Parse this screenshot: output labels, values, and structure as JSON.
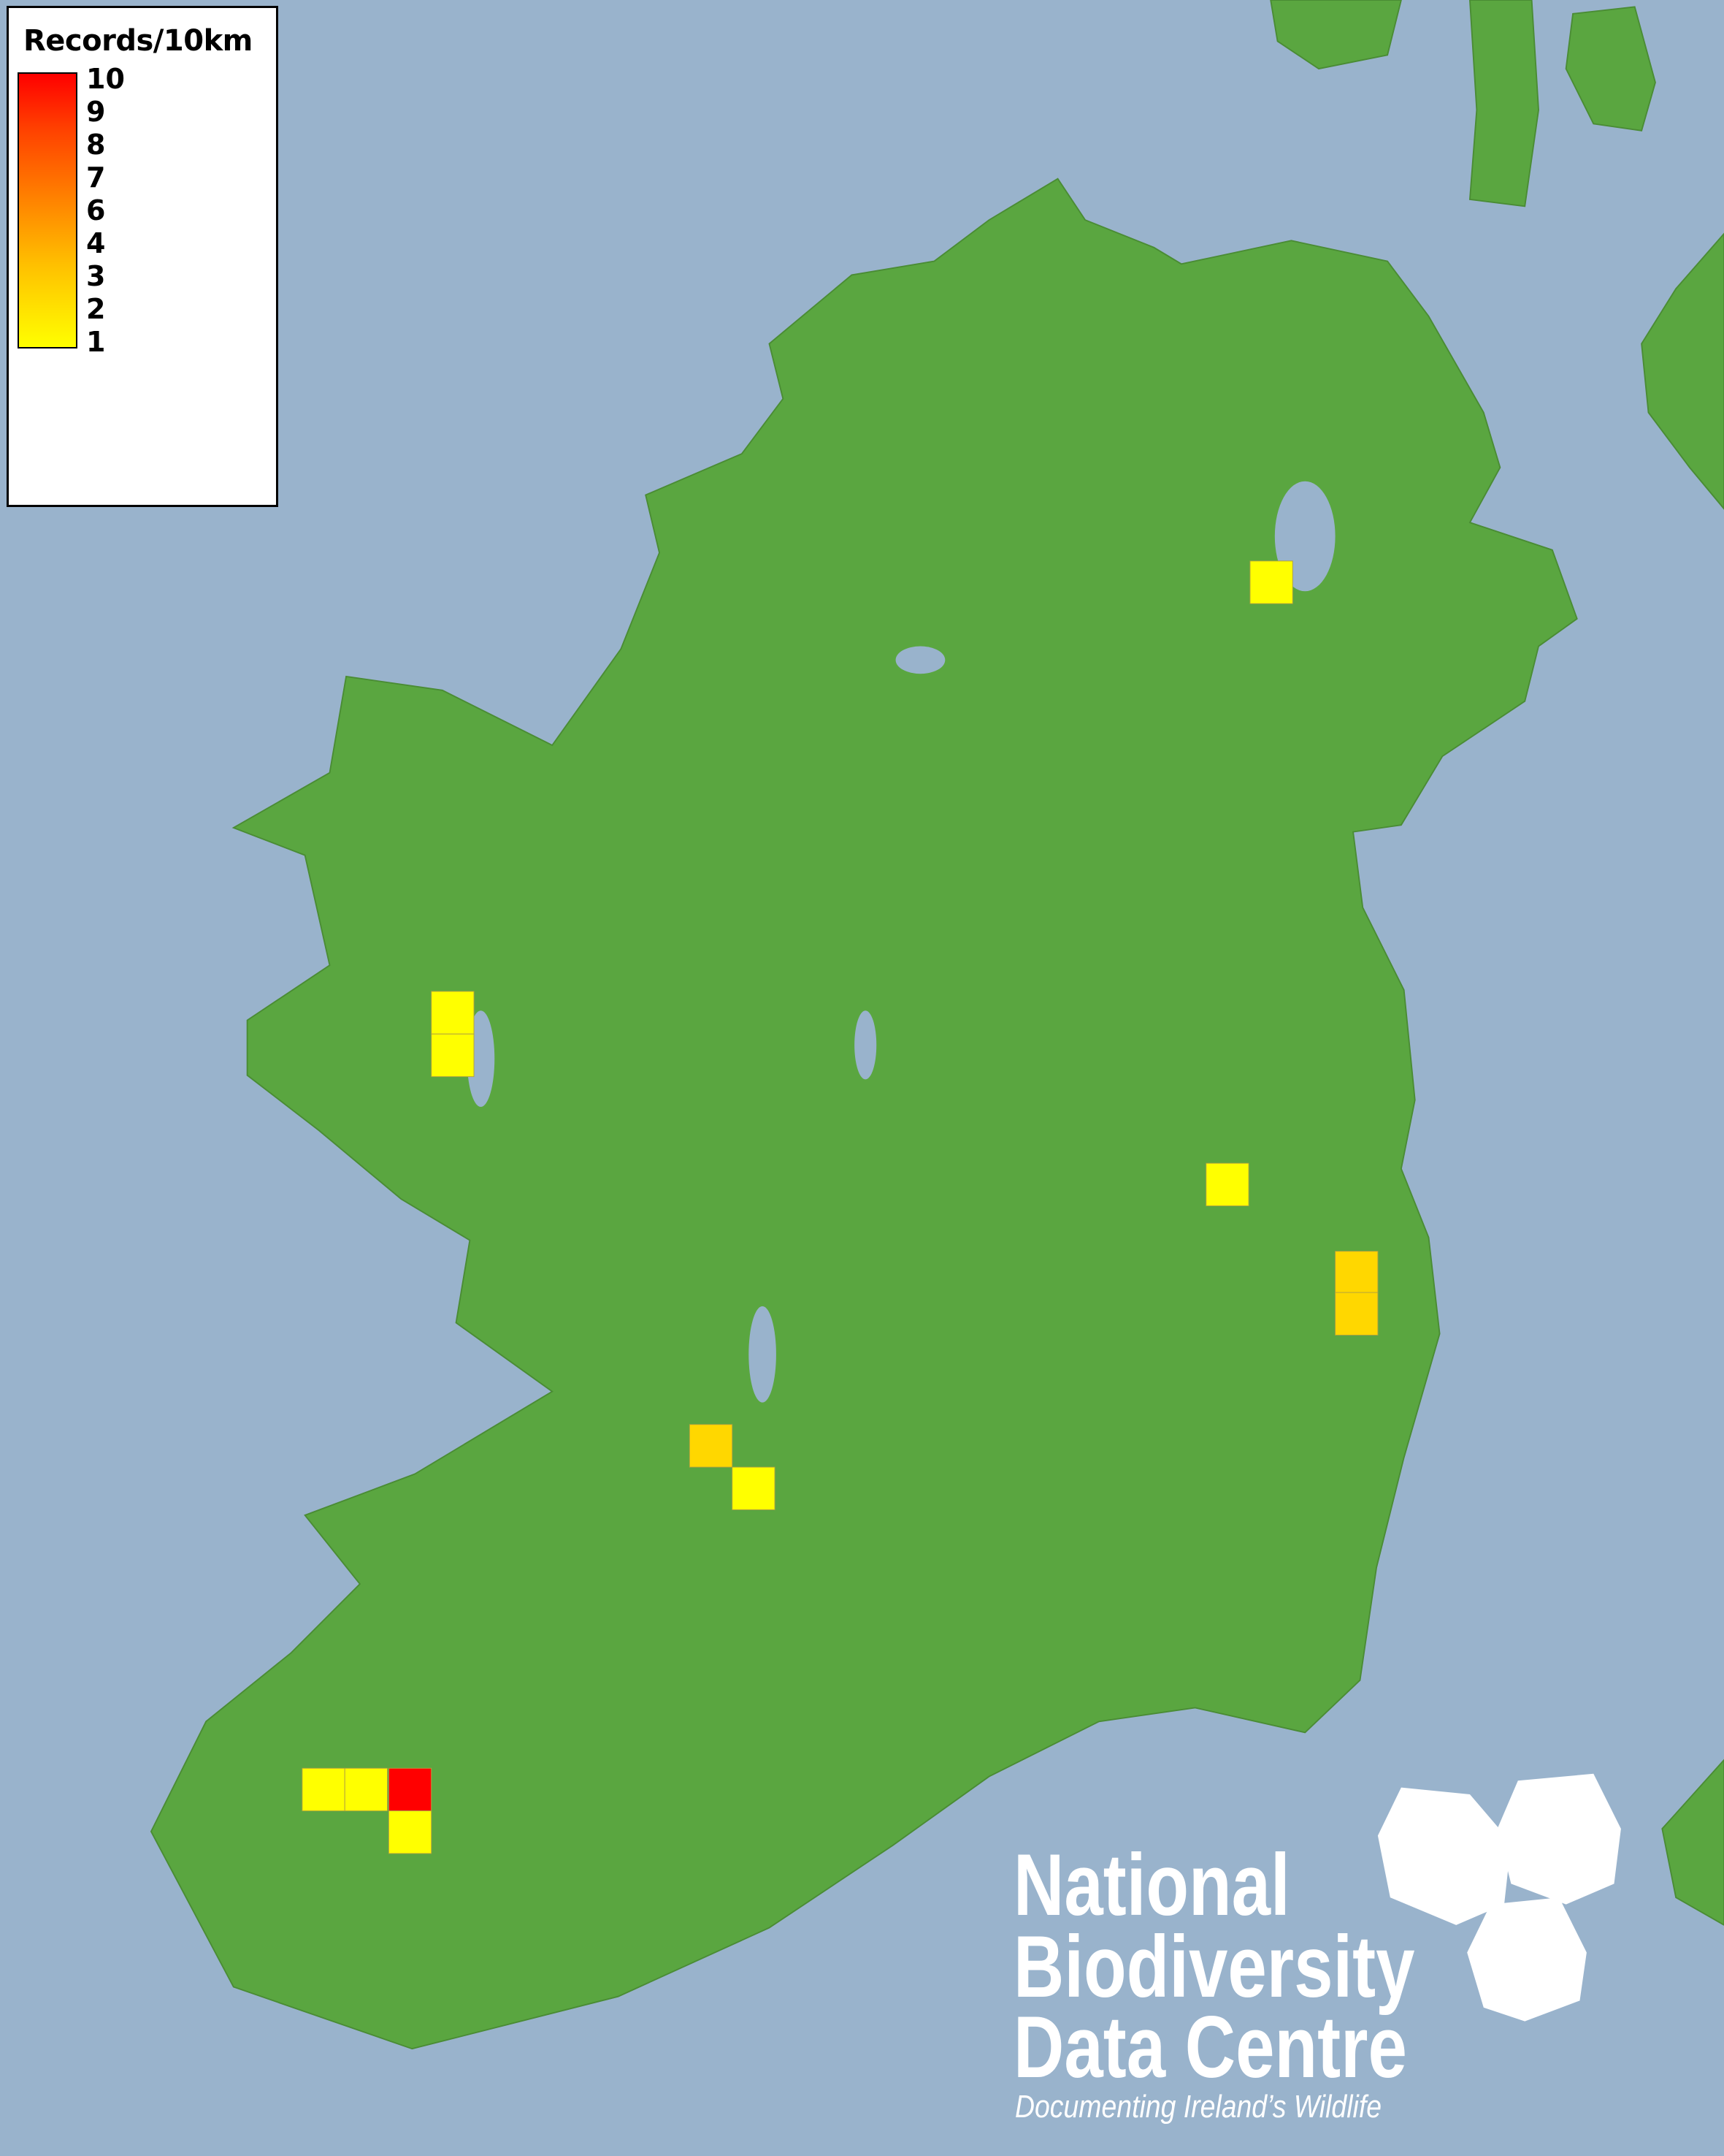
{
  "colors": {
    "sea": "#99b3cc",
    "land": "#5aa640",
    "low": "#ffff00",
    "mid": "#ffd700",
    "high": "#ff0000"
  },
  "legend": {
    "title": "Records/10km",
    "labels": [
      "10",
      "9",
      "8",
      "7",
      "6",
      "4",
      "3",
      "2",
      "1"
    ]
  },
  "records": [
    {
      "value": 1
    },
    {
      "value": 1
    },
    {
      "value": 1
    },
    {
      "value": 1
    },
    {
      "value": 2
    },
    {
      "value": 2
    },
    {
      "value": 2
    },
    {
      "value": 1
    },
    {
      "value": 1
    },
    {
      "value": 1
    },
    {
      "value": 10
    },
    {
      "value": 1
    }
  ],
  "logo": {
    "line1": "National",
    "line2": "Biodiversity",
    "line3": "Data Centre",
    "tagline": "Documenting Ireland’s Wildlife"
  }
}
